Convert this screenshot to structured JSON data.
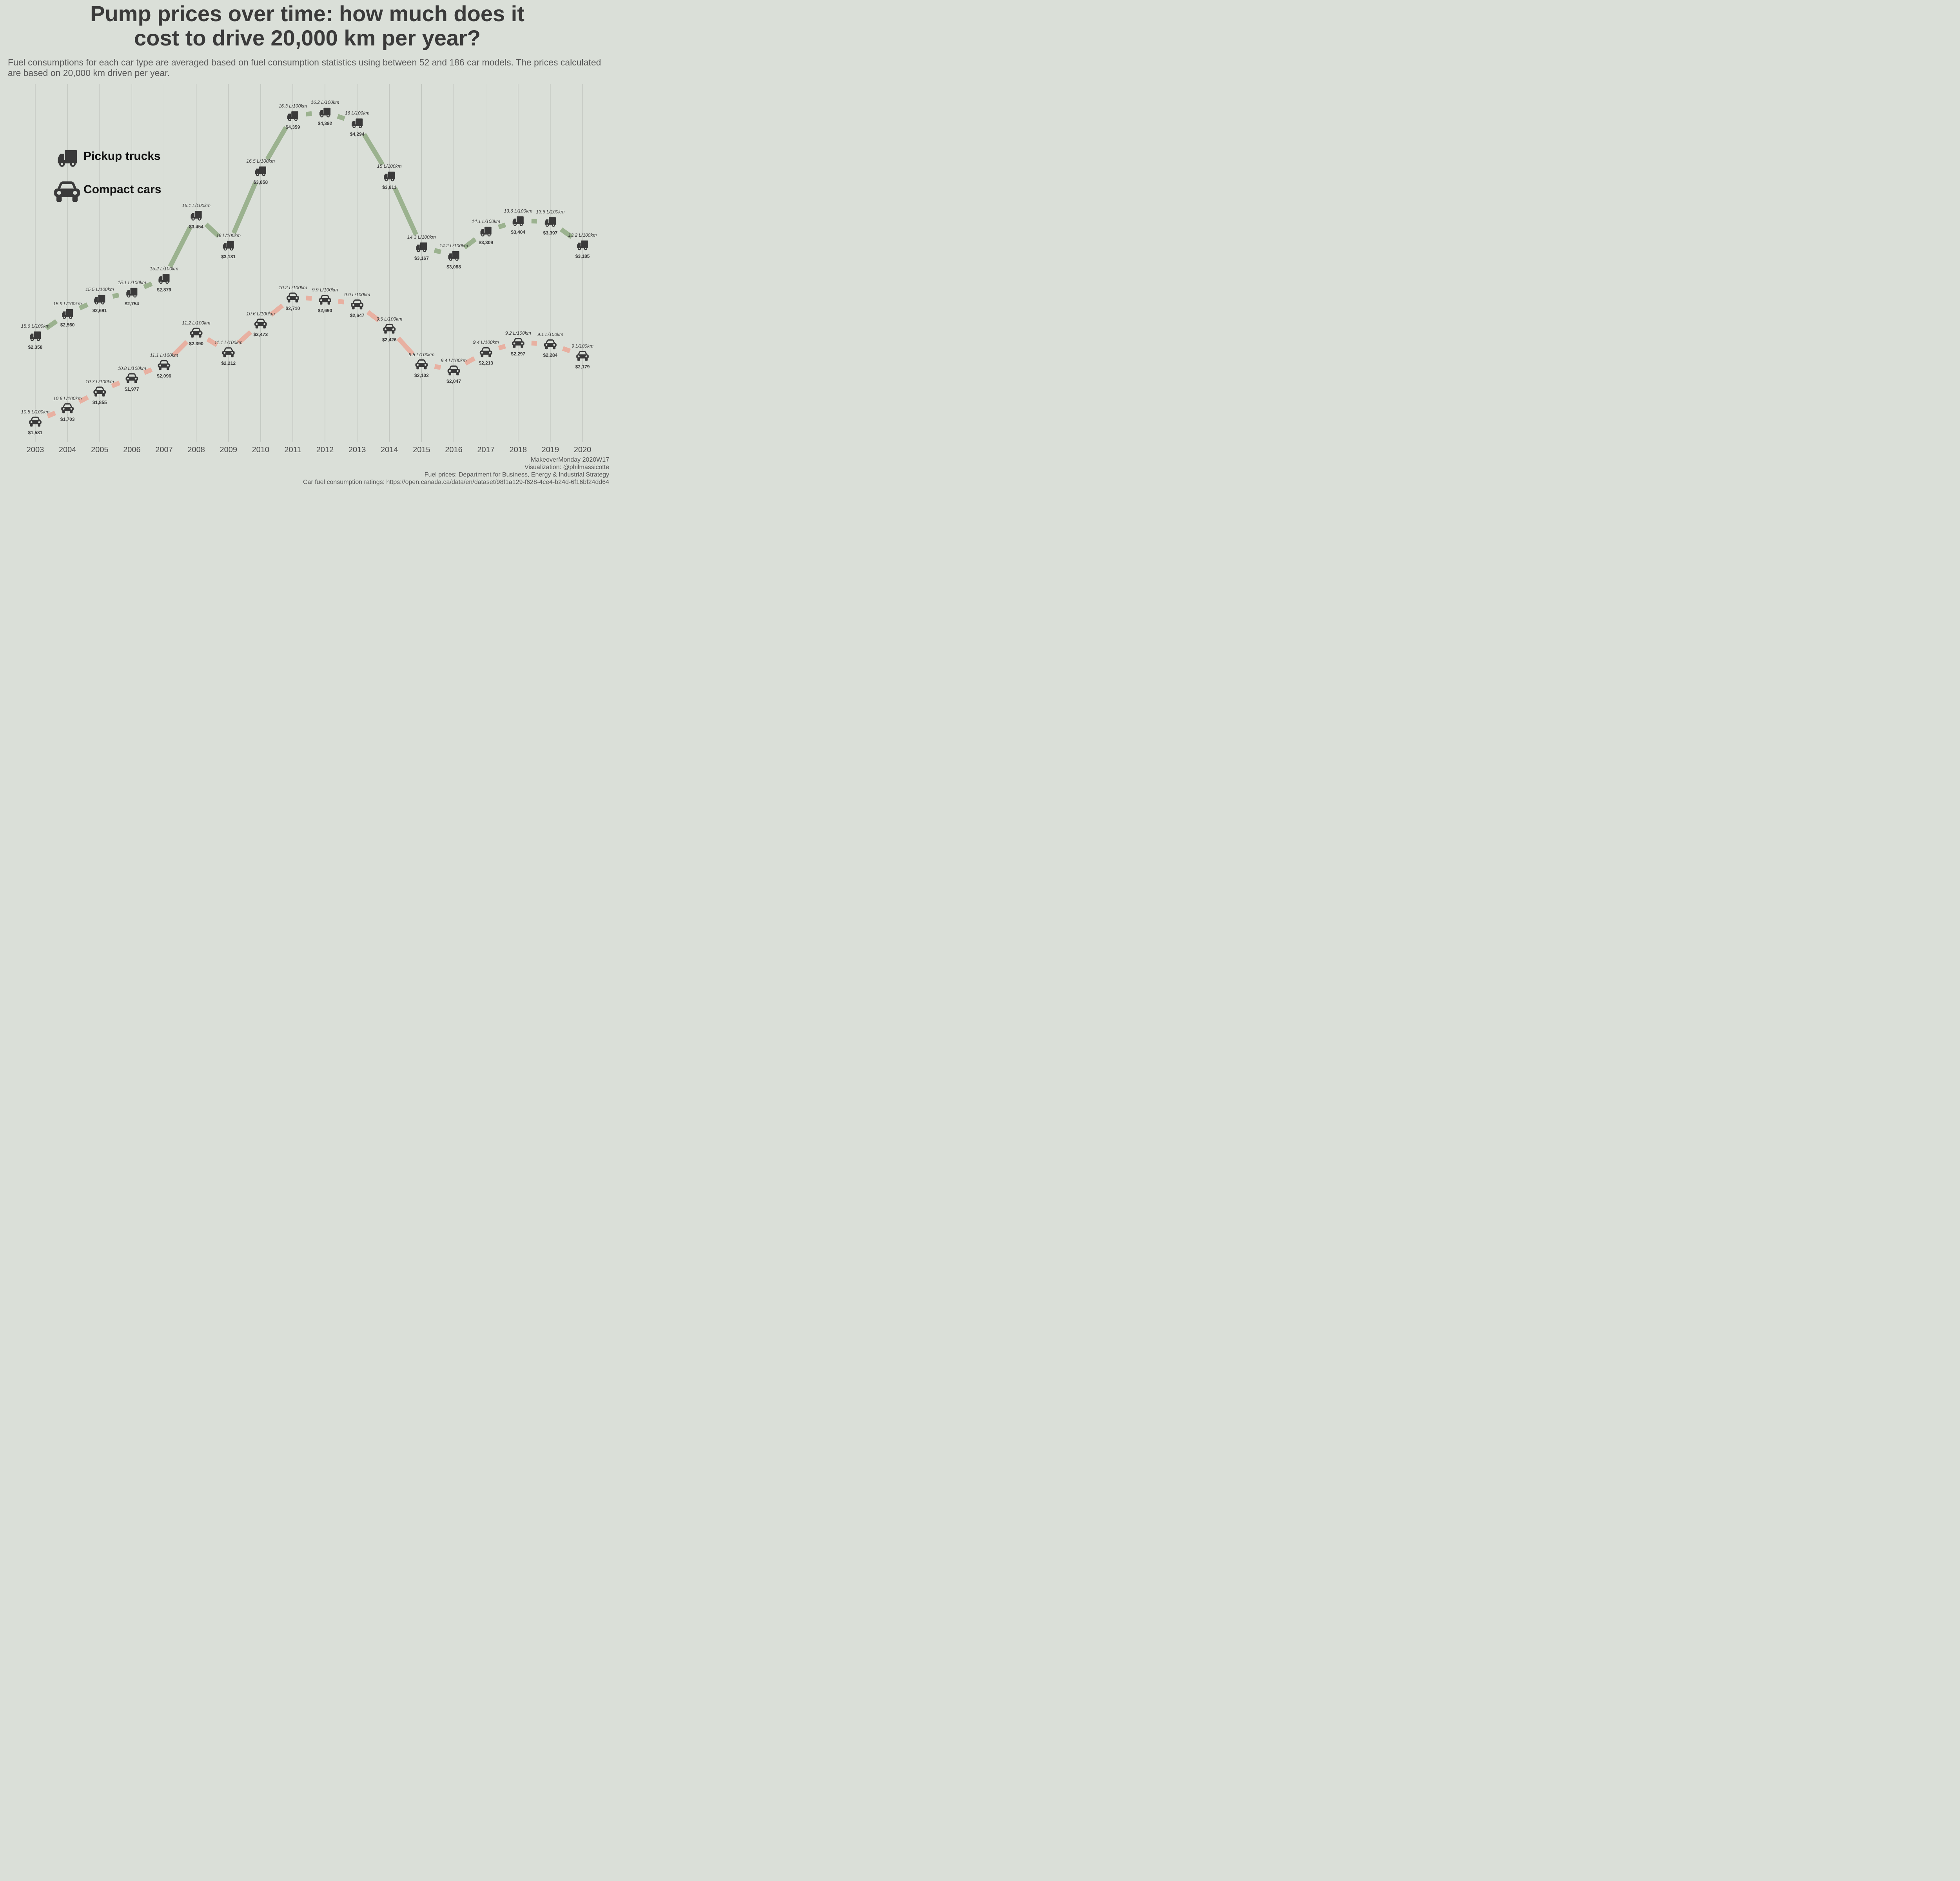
{
  "title_lines": [
    "Pump prices over time: how much does it",
    "cost to drive 20,000 km per year?"
  ],
  "subtitle": "Fuel consumptions for each car type are averaged based on fuel consumption statistics using between 52 and 186 car models. The prices calculated are based on 20,000 km driven per year.",
  "legend": {
    "trucks": {
      "label": "Pickup trucks",
      "icon": "truck-icon"
    },
    "cars": {
      "label": "Compact cars",
      "icon": "car-icon"
    }
  },
  "caption_lines": [
    "MakeoverMonday 2020W17",
    "Visualization: @philmassicotte",
    "Fuel prices: Department for Business, Energy & Industrial Strategy",
    "Car fuel consumption ratings: https://open.canada.ca/data/en/dataset/98f1a129-f628-4ce4-b24d-6f16bf24dd64"
  ],
  "colors": {
    "background": "#dadfd8",
    "trucks_line": "#9bb28f",
    "cars_line": "#e8b0a1",
    "icon": "#3a3a3a",
    "grid": "#bfc3bd"
  },
  "chart_data": {
    "type": "line",
    "x": [
      2003,
      2004,
      2005,
      2006,
      2007,
      2008,
      2009,
      2010,
      2011,
      2012,
      2013,
      2014,
      2015,
      2016,
      2017,
      2018,
      2019,
      2020
    ],
    "xlim": [
      2003,
      2020
    ],
    "ylim": [
      1500,
      4500
    ],
    "grid": "vertical",
    "series": [
      {
        "name": "Pickup trucks",
        "icon": "truck-icon",
        "values": [
          2358,
          2560,
          2691,
          2754,
          2879,
          3454,
          3181,
          3858,
          4359,
          4392,
          4294,
          3811,
          3167,
          3088,
          3309,
          3404,
          3397,
          3185
        ],
        "value_labels": [
          "$2,358",
          "$2,560",
          "$2,691",
          "$2,754",
          "$2,879",
          "$3,454",
          "$3,181",
          "$3,858",
          "$4,359",
          "$4,392",
          "$4,294",
          "$3,811",
          "$3,167",
          "$3,088",
          "$3,309",
          "$3,404",
          "$3,397",
          "$3,185"
        ],
        "consumption_labels": [
          "15.6 L/100km",
          "15.9 L/100km",
          "15.5 L/100km",
          "15.1 L/100km",
          "15.2 L/100km",
          "16.1 L/100km",
          "16 L/100km",
          "16.5 L/100km",
          "16.3 L/100km",
          "16.2 L/100km",
          "16 L/100km",
          "15 L/100km",
          "14.3 L/100km",
          "14.2 L/100km",
          "14.1 L/100km",
          "13.6 L/100km",
          "13.6 L/100km",
          "13.2 L/100km"
        ]
      },
      {
        "name": "Compact cars",
        "icon": "car-icon",
        "values": [
          1581,
          1703,
          1855,
          1977,
          2096,
          2390,
          2212,
          2473,
          2710,
          2690,
          2647,
          2426,
          2102,
          2047,
          2213,
          2297,
          2284,
          2179
        ],
        "value_labels": [
          "$1,581",
          "$1,703",
          "$1,855",
          "$1,977",
          "$2,096",
          "$2,390",
          "$2,212",
          "$2,473",
          "$2,710",
          "$2,690",
          "$2,647",
          "$2,426",
          "$2,102",
          "$2,047",
          "$2,213",
          "$2,297",
          "$2,284",
          "$2,179"
        ],
        "consumption_labels": [
          "10.5 L/100km",
          "10.6 L/100km",
          "10.7 L/100km",
          "10.8 L/100km",
          "11.1 L/100km",
          "11.2 L/100km",
          "11.1 L/100km",
          "10.6 L/100km",
          "10.2 L/100km",
          "9.9 L/100km",
          "9.9 L/100km",
          "9.5 L/100km",
          "9.5 L/100km",
          "9.4 L/100km",
          "9.4 L/100km",
          "9.2 L/100km",
          "9.1 L/100km",
          "9 L/100km"
        ]
      }
    ]
  }
}
